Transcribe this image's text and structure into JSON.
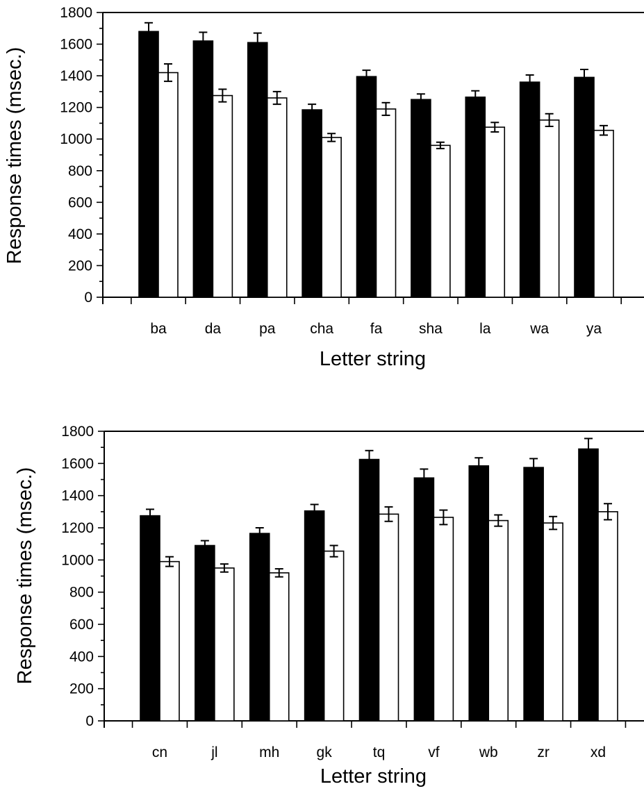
{
  "chart_data": [
    {
      "type": "bar",
      "xlabel": "Letter string",
      "ylabel": "Response times (msec.)",
      "ylim": [
        0,
        1800
      ],
      "yticks": [
        "0",
        "200",
        "400",
        "600",
        "800",
        "1000",
        "1200",
        "1400",
        "1600",
        "1800"
      ],
      "categories": [
        "ba",
        "da",
        "pa",
        "cha",
        "fa",
        "sha",
        "la",
        "wa",
        "ya"
      ],
      "grid": false,
      "series": [
        {
          "fill": "#000000",
          "values": [
            1680,
            1620,
            1610,
            1185,
            1395,
            1250,
            1265,
            1360,
            1390
          ],
          "errors": [
            55,
            55,
            60,
            35,
            40,
            35,
            40,
            45,
            50
          ]
        },
        {
          "fill": "#ffffff",
          "values": [
            1420,
            1275,
            1260,
            1010,
            1190,
            960,
            1075,
            1120,
            1055
          ],
          "errors": [
            55,
            40,
            40,
            25,
            40,
            20,
            30,
            40,
            30
          ]
        }
      ]
    },
    {
      "type": "bar",
      "xlabel": "Letter string",
      "ylabel": "Response times (msec.)",
      "ylim": [
        0,
        1800
      ],
      "yticks": [
        "0",
        "200",
        "400",
        "600",
        "800",
        "1000",
        "1200",
        "1400",
        "1600",
        "1800"
      ],
      "categories": [
        "cn",
        "jl",
        "mh",
        "gk",
        "tq",
        "vf",
        "wb",
        "zr",
        "xd"
      ],
      "grid": false,
      "series": [
        {
          "fill": "#000000",
          "values": [
            1275,
            1090,
            1165,
            1305,
            1625,
            1510,
            1585,
            1575,
            1690
          ],
          "errors": [
            40,
            30,
            35,
            40,
            55,
            55,
            50,
            55,
            65
          ]
        },
        {
          "fill": "#ffffff",
          "values": [
            990,
            950,
            920,
            1055,
            1285,
            1265,
            1245,
            1230,
            1300
          ],
          "errors": [
            30,
            25,
            25,
            35,
            45,
            45,
            35,
            40,
            50
          ]
        }
      ]
    }
  ]
}
